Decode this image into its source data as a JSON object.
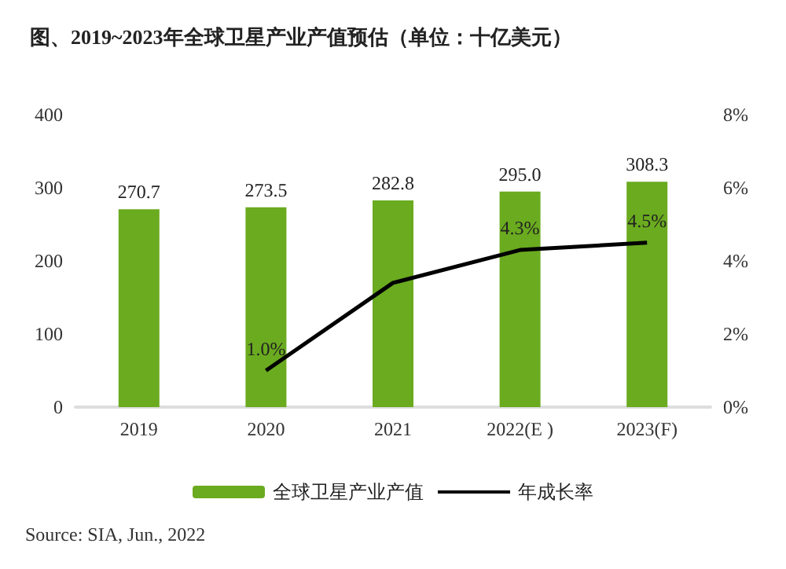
{
  "chart_data": {
    "type": "bar",
    "title": "图、2019~2023年全球卫星产业产值预估（单位：十亿美元）",
    "categories": [
      "2019",
      "2020",
      "2021",
      "2022(E )",
      "2023(F)"
    ],
    "series": [
      {
        "name": "全球卫星产业产值",
        "color": "#6aab1f",
        "values": [
          270.7,
          273.5,
          282.8,
          295.0,
          308.3
        ],
        "value_labels": [
          "270.7",
          "273.5",
          "282.8",
          "295.0",
          "308.3"
        ]
      },
      {
        "name": "年成长率",
        "type": "line",
        "axis": "y2",
        "color": "#000000",
        "values": [
          null,
          1.0,
          3.4,
          4.3,
          4.5
        ],
        "value_labels": [
          null,
          "1.0%",
          null,
          "4.3%",
          "4.5%"
        ]
      }
    ],
    "ylim": [
      0,
      400
    ],
    "yticks": [
      0,
      100,
      200,
      300,
      400
    ],
    "y2lim": [
      0,
      8
    ],
    "y2ticks": [
      {
        "value": 0,
        "label": "0%"
      },
      {
        "value": 2,
        "label": "2%"
      },
      {
        "value": 4,
        "label": "4%"
      },
      {
        "value": 6,
        "label": "6%"
      },
      {
        "value": 8,
        "label": "8%"
      }
    ],
    "grid": false,
    "legend": "bottom",
    "marker": "none",
    "annotations": [
      "Source: SIA, Jun., 2022"
    ]
  }
}
